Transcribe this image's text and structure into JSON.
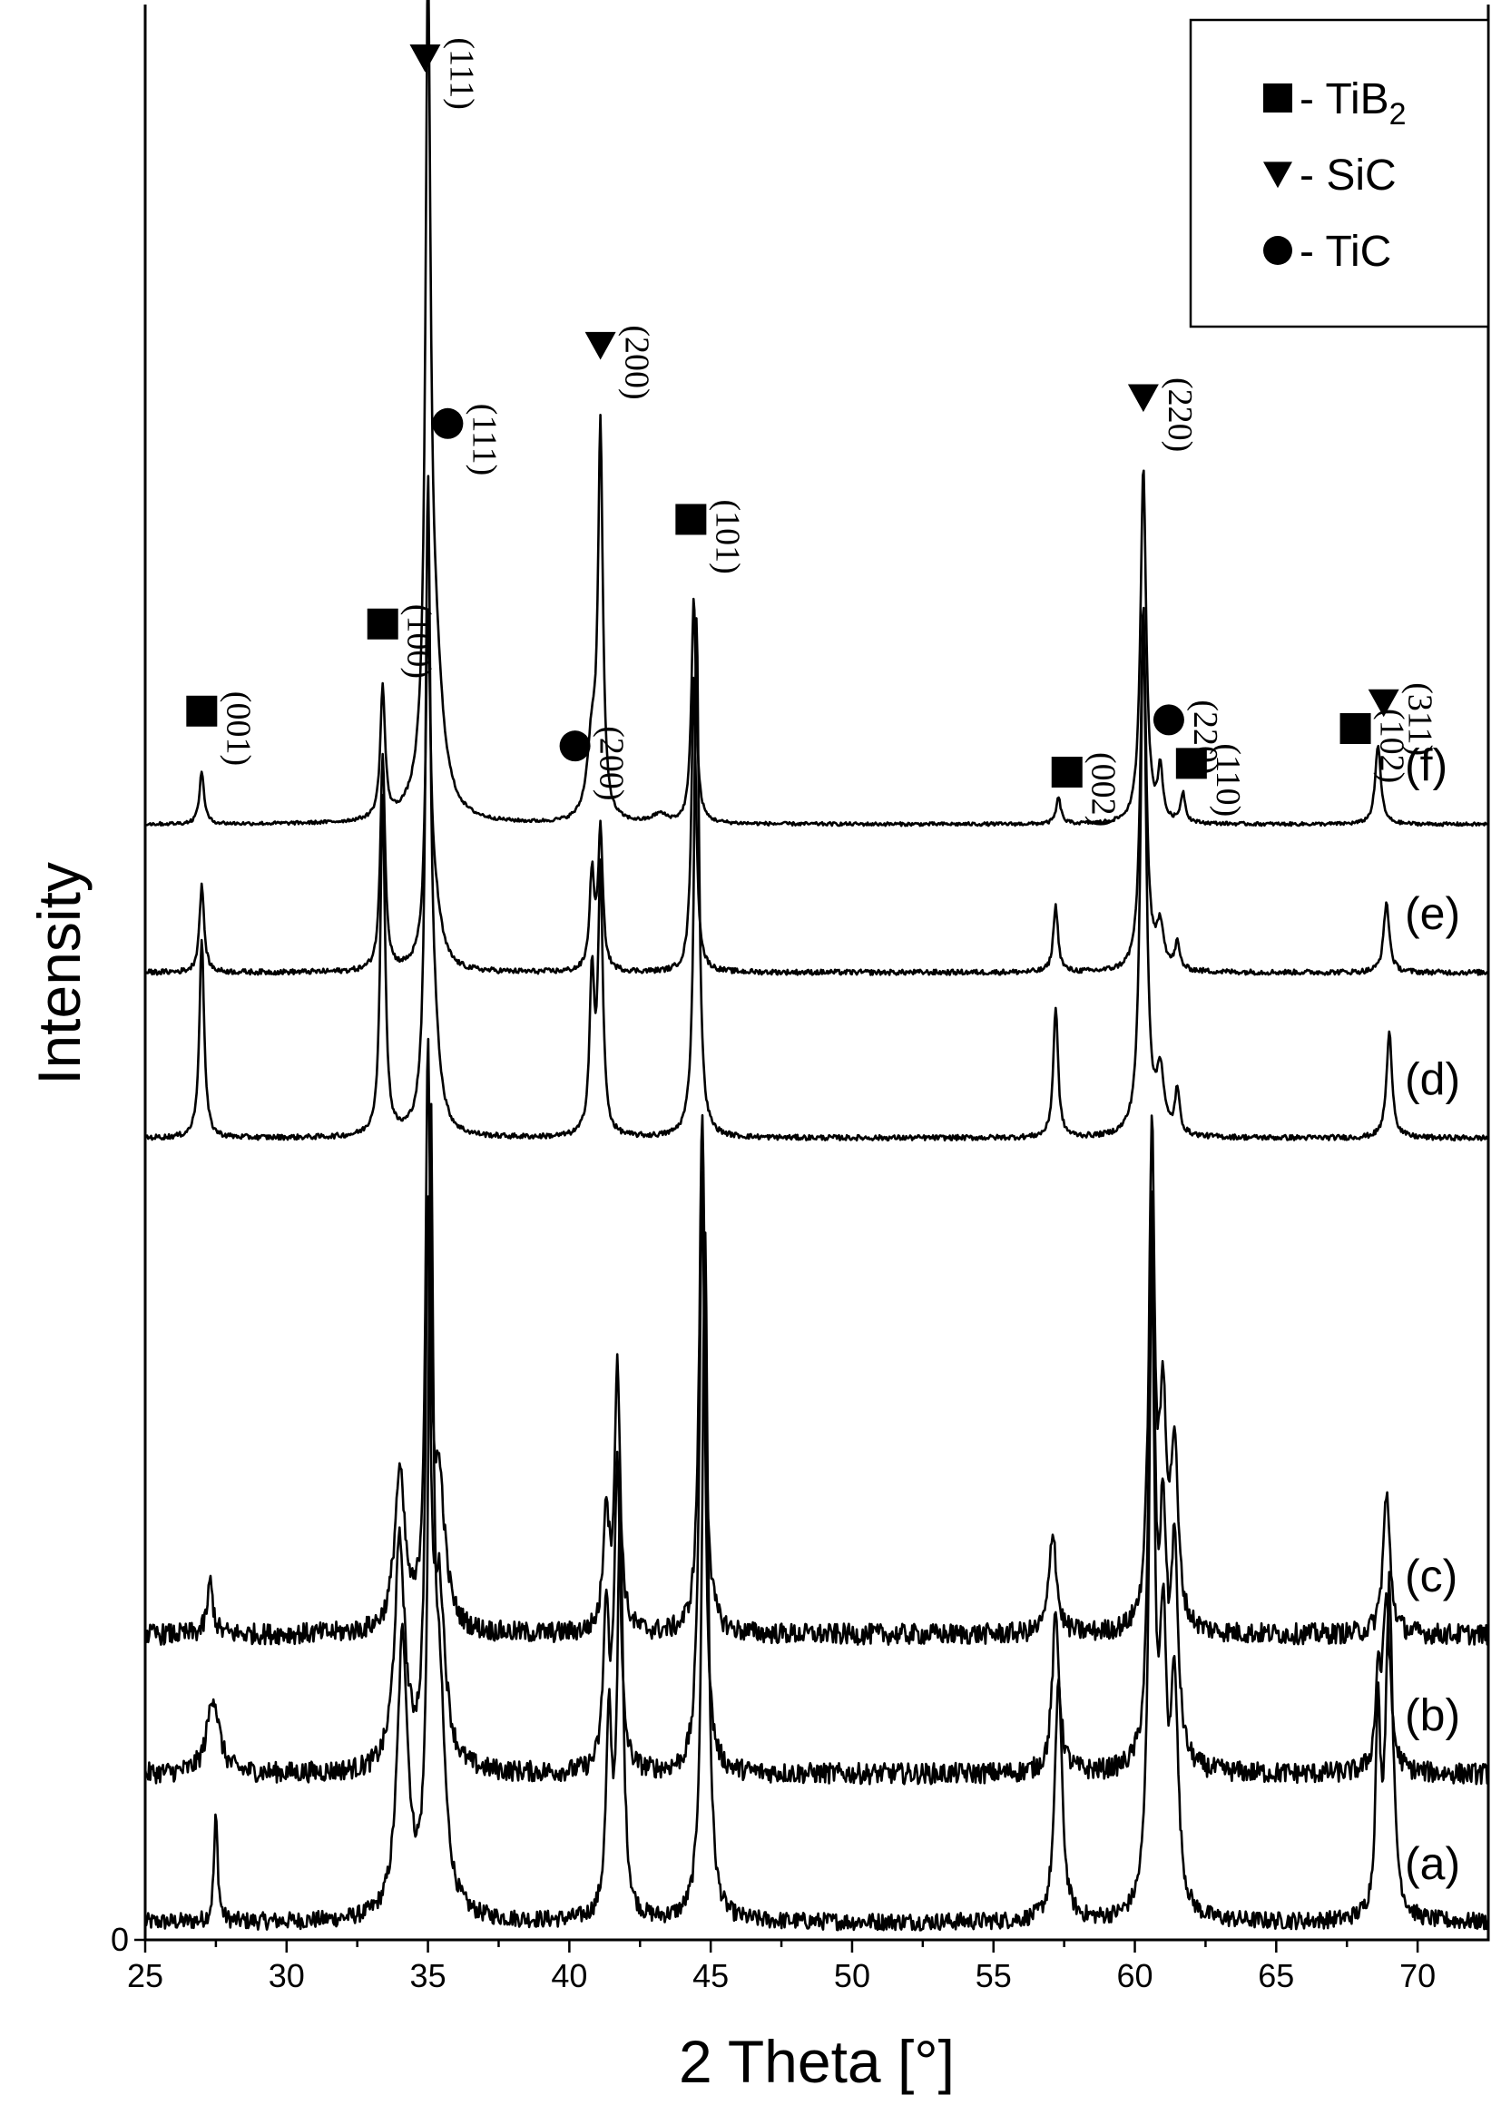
{
  "chart_data": {
    "type": "line",
    "title": "",
    "xlabel": "2 Theta [°]",
    "ylabel": "Intensity",
    "xlim": [
      25,
      72.5
    ],
    "x_ticks": [
      "25",
      "30",
      "35",
      "40",
      "45",
      "50",
      "55",
      "60",
      "65",
      "70"
    ],
    "y_ticks": [
      "0"
    ],
    "grid": false,
    "legend_position": "top-right",
    "legend": [
      {
        "symbol": "square",
        "label_main": "- TiB",
        "label_sub": "2"
      },
      {
        "symbol": "triangle-down",
        "label_main": "- SiC",
        "label_sub": ""
      },
      {
        "symbol": "circle",
        "label_main": "- TiC",
        "label_sub": ""
      }
    ],
    "series": [
      {
        "name": "(a)",
        "baseline": 0.1,
        "noise": 0.1,
        "peaks": [
          {
            "x": 27.5,
            "h": 0.6,
            "w": 0.08
          },
          {
            "x": 34.1,
            "h": 1.6,
            "w": 0.22
          },
          {
            "x": 35.1,
            "h": 4.2,
            "w": 0.1
          },
          {
            "x": 35.4,
            "h": 1.2,
            "w": 0.25
          },
          {
            "x": 41.4,
            "h": 1.1,
            "w": 0.12
          },
          {
            "x": 41.8,
            "h": 2.3,
            "w": 0.12
          },
          {
            "x": 44.8,
            "h": 4.0,
            "w": 0.12
          },
          {
            "x": 57.3,
            "h": 1.4,
            "w": 0.15
          },
          {
            "x": 60.6,
            "h": 3.6,
            "w": 0.12
          },
          {
            "x": 61.0,
            "h": 1.5,
            "w": 0.15
          },
          {
            "x": 61.4,
            "h": 1.3,
            "w": 0.15
          },
          {
            "x": 68.6,
            "h": 1.1,
            "w": 0.1
          },
          {
            "x": 69.0,
            "h": 1.9,
            "w": 0.15
          }
        ]
      },
      {
        "name": "(b)",
        "baseline": 0.95,
        "noise": 0.12,
        "peaks": [
          {
            "x": 27.4,
            "h": 0.45,
            "w": 0.25
          },
          {
            "x": 34.0,
            "h": 1.3,
            "w": 0.22
          },
          {
            "x": 35.0,
            "h": 3.0,
            "w": 0.1
          },
          {
            "x": 35.4,
            "h": 1.0,
            "w": 0.25
          },
          {
            "x": 41.3,
            "h": 0.9,
            "w": 0.12
          },
          {
            "x": 41.7,
            "h": 1.8,
            "w": 0.12
          },
          {
            "x": 44.7,
            "h": 3.4,
            "w": 0.12
          },
          {
            "x": 57.2,
            "h": 0.9,
            "w": 0.15
          },
          {
            "x": 60.6,
            "h": 3.1,
            "w": 0.12
          },
          {
            "x": 61.0,
            "h": 1.3,
            "w": 0.15
          },
          {
            "x": 61.4,
            "h": 1.2,
            "w": 0.15
          },
          {
            "x": 68.6,
            "h": 0.5,
            "w": 0.1
          },
          {
            "x": 68.9,
            "h": 1.0,
            "w": 0.15
          }
        ]
      },
      {
        "name": "(c)",
        "baseline": 1.75,
        "noise": 0.12,
        "peaks": [
          {
            "x": 27.3,
            "h": 0.3,
            "w": 0.12
          },
          {
            "x": 34.0,
            "h": 0.9,
            "w": 0.22
          },
          {
            "x": 35.0,
            "h": 3.2,
            "w": 0.1
          },
          {
            "x": 35.4,
            "h": 0.8,
            "w": 0.25
          },
          {
            "x": 41.3,
            "h": 0.7,
            "w": 0.12
          },
          {
            "x": 41.7,
            "h": 1.5,
            "w": 0.12
          },
          {
            "x": 44.7,
            "h": 3.0,
            "w": 0.12
          },
          {
            "x": 57.1,
            "h": 0.6,
            "w": 0.15
          },
          {
            "x": 60.6,
            "h": 2.8,
            "w": 0.12
          },
          {
            "x": 61.0,
            "h": 1.2,
            "w": 0.15
          },
          {
            "x": 61.4,
            "h": 1.0,
            "w": 0.15
          },
          {
            "x": 68.9,
            "h": 0.8,
            "w": 0.15
          }
        ]
      },
      {
        "name": "(d)",
        "baseline": 4.6,
        "noise": 0.03,
        "peaks": [
          {
            "x": 27.0,
            "h": 1.15,
            "w": 0.1
          },
          {
            "x": 33.4,
            "h": 1.95,
            "w": 0.1
          },
          {
            "x": 35.0,
            "h": 3.5,
            "w": 0.1
          },
          {
            "x": 35.2,
            "h": 0.5,
            "w": 0.25
          },
          {
            "x": 40.8,
            "h": 0.9,
            "w": 0.1
          },
          {
            "x": 41.1,
            "h": 1.5,
            "w": 0.1
          },
          {
            "x": 44.5,
            "h": 3.0,
            "w": 0.1
          },
          {
            "x": 57.2,
            "h": 0.75,
            "w": 0.1
          },
          {
            "x": 60.3,
            "h": 3.0,
            "w": 0.12
          },
          {
            "x": 60.9,
            "h": 0.35,
            "w": 0.15
          },
          {
            "x": 61.5,
            "h": 0.25,
            "w": 0.1
          },
          {
            "x": 69.0,
            "h": 0.6,
            "w": 0.12
          }
        ]
      },
      {
        "name": "(e)",
        "baseline": 5.55,
        "noise": 0.03,
        "peaks": [
          {
            "x": 27.0,
            "h": 0.5,
            "w": 0.1
          },
          {
            "x": 33.4,
            "h": 1.25,
            "w": 0.1
          },
          {
            "x": 35.0,
            "h": 1.8,
            "w": 0.1
          },
          {
            "x": 35.2,
            "h": 0.4,
            "w": 0.3
          },
          {
            "x": 40.8,
            "h": 0.55,
            "w": 0.1
          },
          {
            "x": 41.1,
            "h": 0.8,
            "w": 0.1
          },
          {
            "x": 44.4,
            "h": 1.7,
            "w": 0.1
          },
          {
            "x": 57.2,
            "h": 0.38,
            "w": 0.1
          },
          {
            "x": 60.3,
            "h": 2.1,
            "w": 0.12
          },
          {
            "x": 60.9,
            "h": 0.25,
            "w": 0.15
          },
          {
            "x": 61.5,
            "h": 0.15,
            "w": 0.1
          },
          {
            "x": 68.9,
            "h": 0.4,
            "w": 0.12
          }
        ]
      },
      {
        "name": "(f)",
        "baseline": 6.4,
        "noise": 0.02,
        "peaks": [
          {
            "x": 27.0,
            "h": 0.3,
            "w": 0.1
          },
          {
            "x": 33.4,
            "h": 0.75,
            "w": 0.1
          },
          {
            "x": 35.0,
            "h": 4.25,
            "w": 0.1
          },
          {
            "x": 35.2,
            "h": 1.0,
            "w": 0.35
          },
          {
            "x": 40.8,
            "h": 0.45,
            "w": 0.2
          },
          {
            "x": 41.1,
            "h": 2.2,
            "w": 0.1
          },
          {
            "x": 43.2,
            "h": 0.05,
            "w": 0.3
          },
          {
            "x": 44.4,
            "h": 1.3,
            "w": 0.1
          },
          {
            "x": 57.3,
            "h": 0.15,
            "w": 0.1
          },
          {
            "x": 60.3,
            "h": 2.05,
            "w": 0.12
          },
          {
            "x": 60.9,
            "h": 0.3,
            "w": 0.1
          },
          {
            "x": 61.7,
            "h": 0.17,
            "w": 0.1
          },
          {
            "x": 68.6,
            "h": 0.45,
            "w": 0.12
          }
        ]
      }
    ],
    "annotations": [
      {
        "hkl": "(001)",
        "x": 27.0,
        "symbol": "square",
        "symbol_y": 7.05
      },
      {
        "hkl": "(100)",
        "x": 33.4,
        "symbol": "square",
        "symbol_y": 7.55
      },
      {
        "hkl": "(111)",
        "x": 34.9,
        "symbol": "triangle-down",
        "symbol_y": 10.8
      },
      {
        "hkl": "(111)",
        "x": 35.7,
        "symbol": "circle",
        "symbol_y": 8.7
      },
      {
        "hkl": "(200)",
        "x": 40.2,
        "symbol": "circle",
        "symbol_y": 6.85
      },
      {
        "hkl": "(200)",
        "x": 41.1,
        "symbol": "triangle-down",
        "symbol_y": 9.15
      },
      {
        "hkl": "(101)",
        "x": 44.3,
        "symbol": "square",
        "symbol_y": 8.15
      },
      {
        "hkl": "(002)",
        "x": 57.6,
        "symbol": "square",
        "symbol_y": 6.7
      },
      {
        "hkl": "(220)",
        "x": 60.3,
        "symbol": "triangle-down",
        "symbol_y": 8.85
      },
      {
        "hkl": "(220)",
        "x": 61.2,
        "symbol": "circle",
        "symbol_y": 7.0
      },
      {
        "hkl": "(110)",
        "x": 62.0,
        "symbol": "square",
        "symbol_y": 6.75
      },
      {
        "hkl": "(102)",
        "x": 67.8,
        "symbol": "square",
        "symbol_y": 6.95
      },
      {
        "hkl": "(311)",
        "x": 68.8,
        "symbol": "triangle-down",
        "symbol_y": 7.1
      }
    ]
  }
}
